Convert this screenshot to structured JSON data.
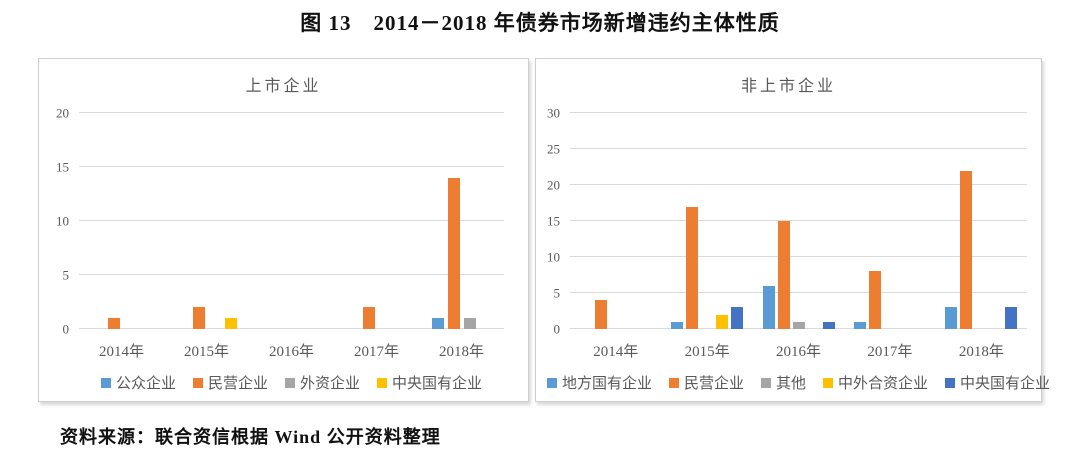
{
  "page": {
    "title": "图 13　2014－2018 年债券市场新增违约主体性质",
    "source": "资料来源：联合资信根据 Wind 公开资料整理"
  },
  "colors": {
    "panel_border": "#cfcfcf",
    "grid_line": "#dadada",
    "axis_text": "#595959",
    "title_text": "#111111",
    "series_blue": "#5B9BD5",
    "series_orange": "#ED7D31",
    "series_gray": "#A5A5A5",
    "series_yellow": "#FFC000",
    "series_dark_blue": "#4472C4"
  },
  "chart_data": [
    {
      "type": "bar",
      "title": "上市企业",
      "xlabel": "",
      "ylabel": "",
      "categories": [
        "2014年",
        "2015年",
        "2016年",
        "2017年",
        "2018年"
      ],
      "series": [
        {
          "name": "公众企业",
          "color": "#5B9BD5",
          "values": [
            0,
            0,
            0,
            0,
            1
          ]
        },
        {
          "name": "民营企业",
          "color": "#ED7D31",
          "values": [
            1,
            2,
            0,
            2,
            14
          ]
        },
        {
          "name": "外资企业",
          "color": "#A5A5A5",
          "values": [
            0,
            0,
            0,
            0,
            1
          ]
        },
        {
          "name": "中央国有企业",
          "color": "#FFC000",
          "values": [
            0,
            1,
            0,
            0,
            0
          ]
        }
      ],
      "ylim": [
        0,
        20
      ],
      "yticks": [
        0,
        5,
        10,
        15,
        20
      ],
      "grid": true,
      "legend_position": "bottom"
    },
    {
      "type": "bar",
      "title": "非上市企业",
      "xlabel": "",
      "ylabel": "",
      "categories": [
        "2014年",
        "2015年",
        "2016年",
        "2017年",
        "2018年"
      ],
      "series": [
        {
          "name": "地方国有企业",
          "color": "#5B9BD5",
          "values": [
            0,
            1,
            6,
            1,
            3
          ]
        },
        {
          "name": "民营企业",
          "color": "#ED7D31",
          "values": [
            4,
            17,
            15,
            8,
            22
          ]
        },
        {
          "name": "其他",
          "color": "#A5A5A5",
          "values": [
            0,
            0,
            1,
            0,
            0
          ]
        },
        {
          "name": "中外合资企业",
          "color": "#FFC000",
          "values": [
            0,
            2,
            0,
            0,
            0
          ]
        },
        {
          "name": "中央国有企业",
          "color": "#4472C4",
          "values": [
            0,
            3,
            1,
            0,
            3
          ]
        }
      ],
      "ylim": [
        0,
        30
      ],
      "yticks": [
        0,
        5,
        10,
        15,
        20,
        25,
        30
      ],
      "grid": true,
      "legend_position": "bottom"
    }
  ]
}
